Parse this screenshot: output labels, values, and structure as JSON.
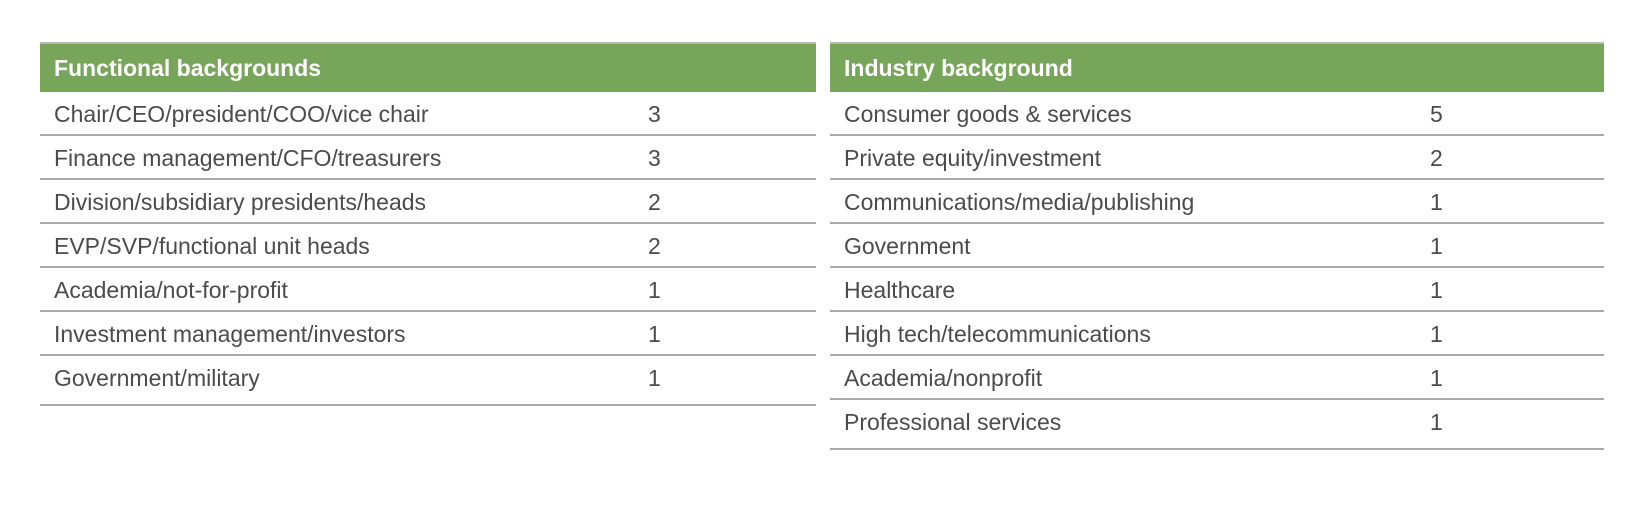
{
  "functional": {
    "header": "Functional backgrounds",
    "rows": [
      {
        "label": "Chair/CEO/president/COO/vice chair",
        "value": "3"
      },
      {
        "label": "Finance management/CFO/treasurers",
        "value": "3"
      },
      {
        "label": "Division/subsidiary presidents/heads",
        "value": "2"
      },
      {
        "label": "EVP/SVP/functional unit heads",
        "value": "2"
      },
      {
        "label": "Academia/not-for-profit",
        "value": "1"
      },
      {
        "label": "Investment management/investors",
        "value": "1"
      },
      {
        "label": "Government/military",
        "value": "1"
      }
    ]
  },
  "industry": {
    "header": "Industry background",
    "rows": [
      {
        "label": "Consumer goods & services",
        "value": "5"
      },
      {
        "label": "Private equity/investment",
        "value": "2"
      },
      {
        "label": "Communications/media/publishing",
        "value": "1"
      },
      {
        "label": "Government",
        "value": "1"
      },
      {
        "label": "Healthcare",
        "value": "1"
      },
      {
        "label": "High tech/telecommunications",
        "value": "1"
      },
      {
        "label": "Academia/nonprofit",
        "value": "1"
      },
      {
        "label": "Professional services",
        "value": "1"
      }
    ]
  },
  "colors": {
    "header_bg": "#77a65a",
    "header_text": "#ffffff",
    "row_text": "#4b4b4b",
    "rule": "#ababab"
  }
}
